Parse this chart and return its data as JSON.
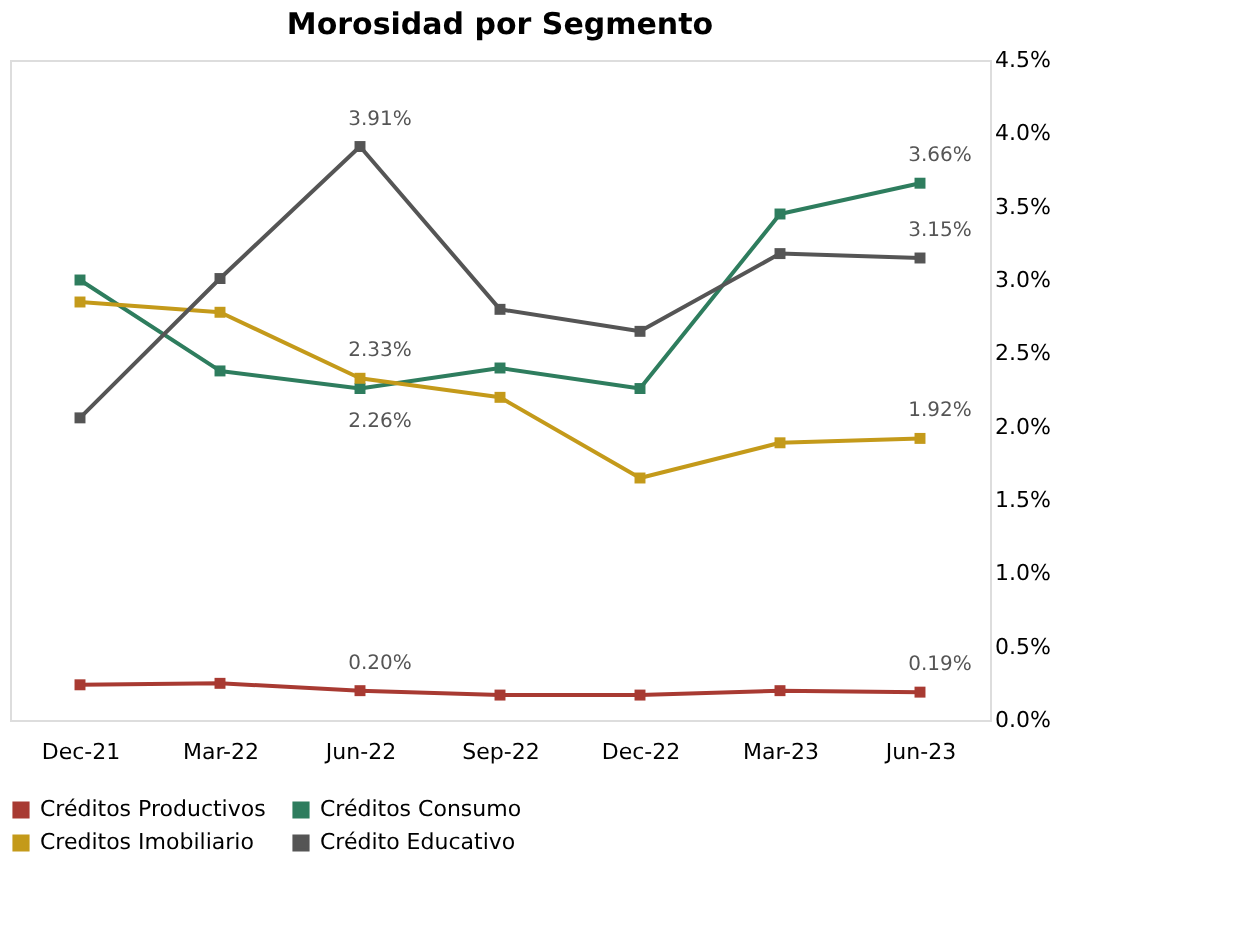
{
  "chart_data": {
    "type": "line",
    "title": "Morosidad por Segmento",
    "categories": [
      "Dec-21",
      "Mar-22",
      "Jun-22",
      "Sep-22",
      "Dec-22",
      "Mar-23",
      "Jun-23"
    ],
    "series": [
      {
        "name": "Créditos Productivos",
        "color": "#a83a32",
        "values": [
          0.24,
          0.25,
          0.2,
          0.17,
          0.17,
          0.2,
          0.19
        ],
        "value_labels": [
          null,
          null,
          "0.20%",
          null,
          null,
          null,
          "0.19%"
        ]
      },
      {
        "name": "Créditos Consumo",
        "color": "#2e7d5e",
        "values": [
          3.0,
          2.38,
          2.26,
          2.4,
          2.26,
          3.45,
          3.66
        ],
        "value_labels": [
          null,
          null,
          "2.26%",
          null,
          null,
          null,
          "3.66%"
        ]
      },
      {
        "name": "Creditos Imobiliario",
        "color": "#c49a1a",
        "values": [
          2.85,
          2.78,
          2.33,
          2.2,
          1.65,
          1.89,
          1.92
        ],
        "value_labels": [
          null,
          null,
          "2.33%",
          null,
          null,
          null,
          "1.92%"
        ]
      },
      {
        "name": "Crédito Educativo",
        "color": "#555555",
        "values": [
          2.06,
          3.01,
          3.91,
          2.8,
          2.65,
          3.18,
          3.15
        ],
        "value_labels": [
          null,
          null,
          "3.91%",
          null,
          null,
          null,
          "3.15%"
        ]
      }
    ],
    "ylim": [
      0,
      4.5
    ],
    "yticks": [
      {
        "value": 0,
        "label": "0.0%"
      },
      {
        "value": 0.5,
        "label": "0.5%"
      },
      {
        "value": 1,
        "label": "1.0%"
      },
      {
        "value": 1.5,
        "label": "1.5%"
      },
      {
        "value": 2,
        "label": "2.0%"
      },
      {
        "value": 2.5,
        "label": "2.5%"
      },
      {
        "value": 3,
        "label": "3.0%"
      },
      {
        "value": 3.5,
        "label": "3.5%"
      },
      {
        "value": 4,
        "label": "4.0%"
      },
      {
        "value": 4.5,
        "label": "4.5%"
      }
    ],
    "grid": false,
    "legend": "bottom",
    "marker": "square",
    "line_style": "solid"
  }
}
